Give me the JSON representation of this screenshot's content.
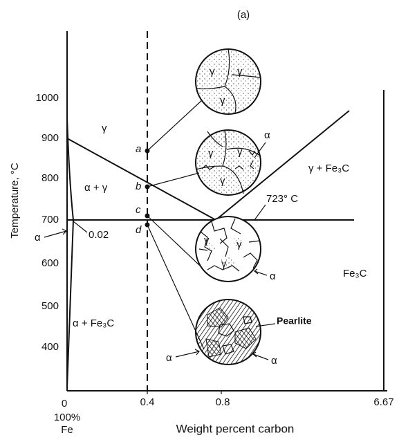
{
  "caption": "(a)",
  "y_axis": {
    "title": "Temperature, °C",
    "ticks": [
      "1000",
      "900",
      "800",
      "700",
      "600",
      "500",
      "400"
    ]
  },
  "x_axis": {
    "title": "Weight percent carbon",
    "ticks": [
      "0",
      "0.4",
      "0.8",
      "6.67"
    ],
    "origin_note": [
      "100%",
      "Fe"
    ]
  },
  "regions": [
    "γ",
    "α + γ",
    "γ + Fe₃C",
    "α + Fe₃C",
    "Fe₃C"
  ],
  "points": [
    "a",
    "b",
    "c",
    "d"
  ],
  "annotations": {
    "eutectoid": "723° C",
    "solubility": "0.02",
    "alpha": "α",
    "pearlite": "Pearlite"
  },
  "microstructures": [
    [
      "γ",
      "γ",
      "γ"
    ],
    [
      "γ",
      "γ",
      "γ",
      "α"
    ],
    [
      "γ",
      "γ",
      "γ",
      "α"
    ],
    [
      "α",
      "α"
    ]
  ]
}
